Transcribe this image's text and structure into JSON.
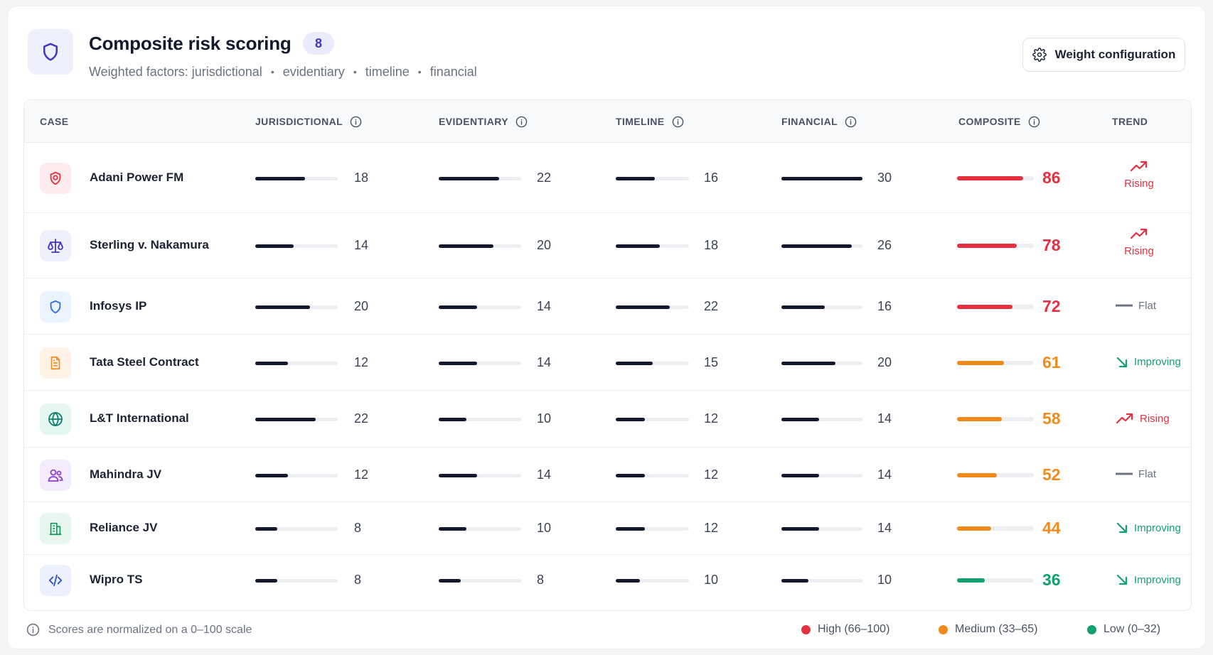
{
  "header": {
    "title": "Composite risk scoring",
    "count": "8",
    "subtitle_prefix": "Weighted factors:",
    "factors": [
      "jurisdictional",
      "evidentiary",
      "timeline",
      "financial"
    ],
    "weights_button": "Weight configuration"
  },
  "columns": {
    "case": "CASE",
    "jurisdictional": "JURISDICTIONAL",
    "evidentiary": "EVIDENTIARY",
    "timeline": "TIMELINE",
    "financial": "FINANCIAL",
    "composite": "COMPOSITE",
    "trend": "TREND"
  },
  "rows": [
    {
      "name": "Adani Power FM",
      "icon": "target-shield-icon",
      "icon_color": "#e5303f",
      "icon_bg": "#fdecee",
      "jurisdictional": 18,
      "evidentiary": 22,
      "timeline": 16,
      "financial": 30,
      "composite": 86,
      "level": "high",
      "trend": "Rising"
    },
    {
      "name": "Sterling v. Nakamura",
      "icon": "scale-icon",
      "icon_color": "#4236c0",
      "icon_bg": "#eef0fc",
      "jurisdictional": 14,
      "evidentiary": 20,
      "timeline": 18,
      "financial": 26,
      "composite": 78,
      "level": "high",
      "trend": "Rising"
    },
    {
      "name": "Infosys IP",
      "icon": "shield-icon",
      "icon_color": "#2f6fe0",
      "icon_bg": "#ebf3fe",
      "jurisdictional": 20,
      "evidentiary": 14,
      "timeline": 22,
      "financial": 16,
      "composite": 72,
      "level": "high",
      "trend": "Flat"
    },
    {
      "name": "Tata Steel Contract",
      "icon": "document-icon",
      "icon_color": "#f18a1c",
      "icon_bg": "#fef3e6",
      "jurisdictional": 12,
      "evidentiary": 14,
      "timeline": 15,
      "financial": 20,
      "composite": 61,
      "level": "medium",
      "trend": "Improving"
    },
    {
      "name": "L&T International",
      "icon": "globe-icon",
      "icon_color": "#10806a",
      "icon_bg": "#e6f6f1",
      "jurisdictional": 22,
      "evidentiary": 10,
      "timeline": 12,
      "financial": 14,
      "composite": 58,
      "level": "medium",
      "trend": "Rising"
    },
    {
      "name": "Mahindra JV",
      "icon": "users-icon",
      "icon_color": "#8b3fd1",
      "icon_bg": "#f4ecfc",
      "jurisdictional": 12,
      "evidentiary": 14,
      "timeline": 12,
      "financial": 14,
      "composite": 52,
      "level": "medium",
      "trend": "Flat"
    },
    {
      "name": "Reliance JV",
      "icon": "building-icon",
      "icon_color": "#12955c",
      "icon_bg": "#e7f7ef",
      "jurisdictional": 8,
      "evidentiary": 10,
      "timeline": 12,
      "financial": 14,
      "composite": 44,
      "level": "medium",
      "trend": "Improving"
    },
    {
      "name": "Wipro TS",
      "icon": "code-icon",
      "icon_color": "#2f4fc0",
      "icon_bg": "#ecf1fd",
      "jurisdictional": 8,
      "evidentiary": 8,
      "timeline": 10,
      "financial": 10,
      "composite": 36,
      "level": "medium-low",
      "trend": "Improving"
    }
  ],
  "levels": {
    "high": "#e5303f",
    "medium": "#f18a1c",
    "medium-low": "#12a06e"
  },
  "trend_colors": {
    "Rising": "#e5303f",
    "Flat": "#6b7280",
    "Improving": "#12a06e"
  },
  "footer": {
    "note": "Scores are normalized on a 0–100 scale",
    "legend": [
      {
        "label": "High (66–100)",
        "color": "#e5303f"
      },
      {
        "label": "Medium (33–65)",
        "color": "#f18a1c"
      },
      {
        "label": "Low (0–32)",
        "color": "#12a06e"
      }
    ]
  }
}
